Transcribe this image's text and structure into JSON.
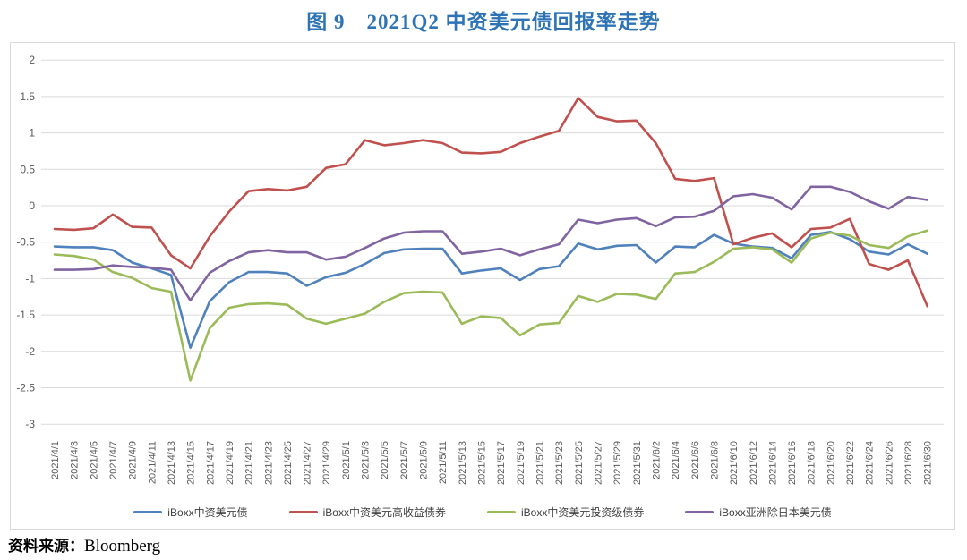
{
  "title": "图 9　2021Q2 中资美元债回报率走势",
  "source": {
    "label": "资料来源：",
    "value": "Bloomberg"
  },
  "accent_color": "#2E74B5",
  "chart_data": {
    "type": "line",
    "title": "图 9　2021Q2 中资美元债回报率走势",
    "xlabel": "",
    "ylabel": "",
    "ylim": [
      -3,
      2
    ],
    "ytick_step": 0.5,
    "grid": "horizontal",
    "legend_position": "bottom",
    "yticks": [
      "2",
      "1.5",
      "1",
      "0.5",
      "0",
      "-0.5",
      "-1",
      "-1.5",
      "-2",
      "-2.5",
      "-3"
    ],
    "x": [
      "2021/4/1",
      "2021/4/3",
      "2021/4/5",
      "2021/4/7",
      "2021/4/9",
      "2021/4/11",
      "2021/4/13",
      "2021/4/15",
      "2021/4/17",
      "2021/4/19",
      "2021/4/21",
      "2021/4/23",
      "2021/4/25",
      "2021/4/27",
      "2021/4/29",
      "2021/5/1",
      "2021/5/3",
      "2021/5/5",
      "2021/5/7",
      "2021/5/9",
      "2021/5/11",
      "2021/5/13",
      "2021/5/15",
      "2021/5/17",
      "2021/5/19",
      "2021/5/21",
      "2021/5/23",
      "2021/5/25",
      "2021/5/27",
      "2021/5/29",
      "2021/5/31",
      "2021/6/2",
      "2021/6/4",
      "2021/6/6",
      "2021/6/8",
      "2021/6/10",
      "2021/6/12",
      "2021/6/14",
      "2021/6/16",
      "2021/6/18",
      "2021/6/20",
      "2021/6/22",
      "2021/6/24",
      "2021/6/26",
      "2021/6/28",
      "2021/6/30"
    ],
    "series": [
      {
        "name": "iBoxx中资美元债",
        "color": "#4F81BD",
        "values": [
          -0.56,
          -0.57,
          -0.57,
          -0.61,
          -0.78,
          -0.86,
          -0.95,
          -1.95,
          -1.31,
          -1.05,
          -0.91,
          -0.91,
          -0.93,
          -1.1,
          -0.98,
          -0.92,
          -0.8,
          -0.65,
          -0.6,
          -0.59,
          -0.59,
          -0.93,
          -0.89,
          -0.86,
          -1.02,
          -0.87,
          -0.83,
          -0.52,
          -0.6,
          -0.55,
          -0.54,
          -0.78,
          -0.56,
          -0.57,
          -0.4,
          -0.52,
          -0.56,
          -0.58,
          -0.72,
          -0.4,
          -0.36,
          -0.46,
          -0.63,
          -0.67,
          -0.53,
          -0.66
        ]
      },
      {
        "name": "iBoxx中资美元高收益债券",
        "color": "#C0504D",
        "values": [
          -0.32,
          -0.33,
          -0.31,
          -0.12,
          -0.29,
          -0.3,
          -0.68,
          -0.86,
          -0.42,
          -0.08,
          0.2,
          0.23,
          0.21,
          0.26,
          0.52,
          0.57,
          0.9,
          0.83,
          0.86,
          0.9,
          0.86,
          0.73,
          0.72,
          0.74,
          0.86,
          0.95,
          1.03,
          1.48,
          1.22,
          1.16,
          1.17,
          0.86,
          0.37,
          0.34,
          0.38,
          -0.53,
          -0.44,
          -0.38,
          -0.57,
          -0.32,
          -0.3,
          -0.18,
          -0.8,
          -0.88,
          -0.75,
          -1.38
        ]
      },
      {
        "name": "iBoxx中资美元投资级债券",
        "color": "#9BBB59",
        "values": [
          -0.67,
          -0.69,
          -0.74,
          -0.91,
          -0.99,
          -1.13,
          -1.18,
          -2.4,
          -1.68,
          -1.4,
          -1.35,
          -1.34,
          -1.36,
          -1.55,
          -1.62,
          -1.55,
          -1.48,
          -1.32,
          -1.2,
          -1.18,
          -1.19,
          -1.62,
          -1.52,
          -1.54,
          -1.78,
          -1.63,
          -1.61,
          -1.24,
          -1.32,
          -1.21,
          -1.22,
          -1.28,
          -0.93,
          -0.91,
          -0.77,
          -0.59,
          -0.57,
          -0.6,
          -0.78,
          -0.45,
          -0.37,
          -0.41,
          -0.54,
          -0.58,
          -0.42,
          -0.34
        ]
      },
      {
        "name": "iBoxx亚洲除日本美元债",
        "color": "#8064A2",
        "values": [
          -0.88,
          -0.88,
          -0.87,
          -0.82,
          -0.84,
          -0.85,
          -0.88,
          -1.3,
          -0.92,
          -0.76,
          -0.64,
          -0.61,
          -0.64,
          -0.64,
          -0.74,
          -0.7,
          -0.58,
          -0.45,
          -0.37,
          -0.35,
          -0.35,
          -0.66,
          -0.63,
          -0.59,
          -0.68,
          -0.6,
          -0.53,
          -0.19,
          -0.24,
          -0.19,
          -0.17,
          -0.28,
          -0.16,
          -0.15,
          -0.07,
          0.13,
          0.16,
          0.11,
          -0.05,
          0.26,
          0.26,
          0.19,
          0.06,
          -0.04,
          0.12,
          0.08
        ]
      }
    ]
  }
}
